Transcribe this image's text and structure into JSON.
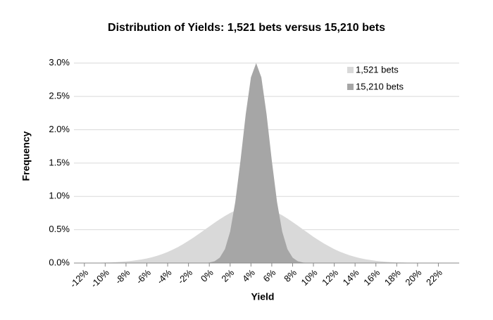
{
  "chart_data": {
    "type": "area",
    "title": "Distribution of Yields: 1,521 bets versus 15,210 bets",
    "x_label": "Yield",
    "y_label": "Frequency",
    "x": [
      -13,
      -12.5,
      -12,
      -11.5,
      -11,
      -10.5,
      -10,
      -9.5,
      -9,
      -8.5,
      -8,
      -7.5,
      -7,
      -6.5,
      -6,
      -5.5,
      -5,
      -4.5,
      -4,
      -3.5,
      -3,
      -2.5,
      -2,
      -1.5,
      -1,
      -0.5,
      0,
      0.5,
      1,
      1.5,
      2,
      2.5,
      3,
      3.5,
      4,
      4.5,
      5,
      5.5,
      6,
      6.5,
      7,
      7.5,
      8,
      8.5,
      9,
      9.5,
      10,
      10.5,
      11,
      11.5,
      12,
      12.5,
      13,
      13.5,
      14,
      14.5,
      15,
      15.5,
      16,
      16.5,
      17,
      17.5,
      18,
      18.5,
      19,
      19.5,
      20,
      20.5,
      21,
      21.5,
      22,
      22.5,
      23,
      23.5,
      24
    ],
    "series": [
      {
        "name": "1,521 bets",
        "color": "#d9d9d9",
        "values": [
          0.001,
          0.001,
          0.002,
          0.002,
          0.003,
          0.005,
          0.007,
          0.009,
          0.013,
          0.018,
          0.024,
          0.032,
          0.042,
          0.054,
          0.069,
          0.088,
          0.11,
          0.136,
          0.167,
          0.202,
          0.241,
          0.285,
          0.333,
          0.384,
          0.438,
          0.493,
          0.549,
          0.604,
          0.657,
          0.706,
          0.75,
          0.787,
          0.817,
          0.837,
          0.848,
          0.849,
          0.84,
          0.822,
          0.794,
          0.758,
          0.716,
          0.667,
          0.615,
          0.56,
          0.504,
          0.449,
          0.394,
          0.343,
          0.294,
          0.25,
          0.209,
          0.173,
          0.142,
          0.115,
          0.092,
          0.073,
          0.057,
          0.044,
          0.033,
          0.025,
          0.019,
          0.014,
          0.01,
          0.007,
          0.005,
          0.004,
          0.003,
          0.002,
          0.001,
          0.001,
          0.001,
          0.001,
          0,
          0,
          0
        ]
      },
      {
        "name": "15,210 bets",
        "color": "#a6a6a6",
        "values": [
          0,
          0,
          0,
          0,
          0,
          0,
          0,
          0,
          0,
          0,
          0,
          0,
          0,
          0,
          0,
          0,
          0,
          0,
          0,
          0,
          0,
          0,
          0,
          0,
          0,
          0,
          0.007,
          0.026,
          0.08,
          0.209,
          0.472,
          0.919,
          1.541,
          2.232,
          2.786,
          3.0,
          2.786,
          2.232,
          1.541,
          0.919,
          0.472,
          0.209,
          0.08,
          0.026,
          0.007,
          0,
          0,
          0,
          0,
          0,
          0,
          0,
          0,
          0,
          0,
          0,
          0,
          0,
          0,
          0,
          0,
          0,
          0,
          0,
          0,
          0,
          0,
          0,
          0,
          0,
          0,
          0,
          0,
          0,
          0
        ]
      }
    ],
    "xlim": [
      -13,
      24
    ],
    "xticks": [
      {
        "value": -12,
        "label": "-12%"
      },
      {
        "value": -10,
        "label": "-10%"
      },
      {
        "value": -8,
        "label": "-8%"
      },
      {
        "value": -6,
        "label": "-6%"
      },
      {
        "value": -4,
        "label": "-4%"
      },
      {
        "value": -2,
        "label": "-2%"
      },
      {
        "value": 0,
        "label": "0%"
      },
      {
        "value": 2,
        "label": "2%"
      },
      {
        "value": 4,
        "label": "4%"
      },
      {
        "value": 6,
        "label": "6%"
      },
      {
        "value": 8,
        "label": "8%"
      },
      {
        "value": 10,
        "label": "10%"
      },
      {
        "value": 12,
        "label": "12%"
      },
      {
        "value": 14,
        "label": "14%"
      },
      {
        "value": 16,
        "label": "16%"
      },
      {
        "value": 18,
        "label": "18%"
      },
      {
        "value": 20,
        "label": "20%"
      },
      {
        "value": 22,
        "label": "22%"
      }
    ],
    "ylim": [
      0,
      3.25
    ],
    "yticks": [
      {
        "value": 0,
        "label": "0.0%"
      },
      {
        "value": 0.5,
        "label": "0.5%"
      },
      {
        "value": 1,
        "label": "1.0%"
      },
      {
        "value": 1.5,
        "label": "1.5%"
      },
      {
        "value": 2,
        "label": "2.0%"
      },
      {
        "value": 2.5,
        "label": "2.5%"
      },
      {
        "value": 3,
        "label": "3.0%"
      }
    ],
    "grid": true,
    "legend": "upper right"
  }
}
